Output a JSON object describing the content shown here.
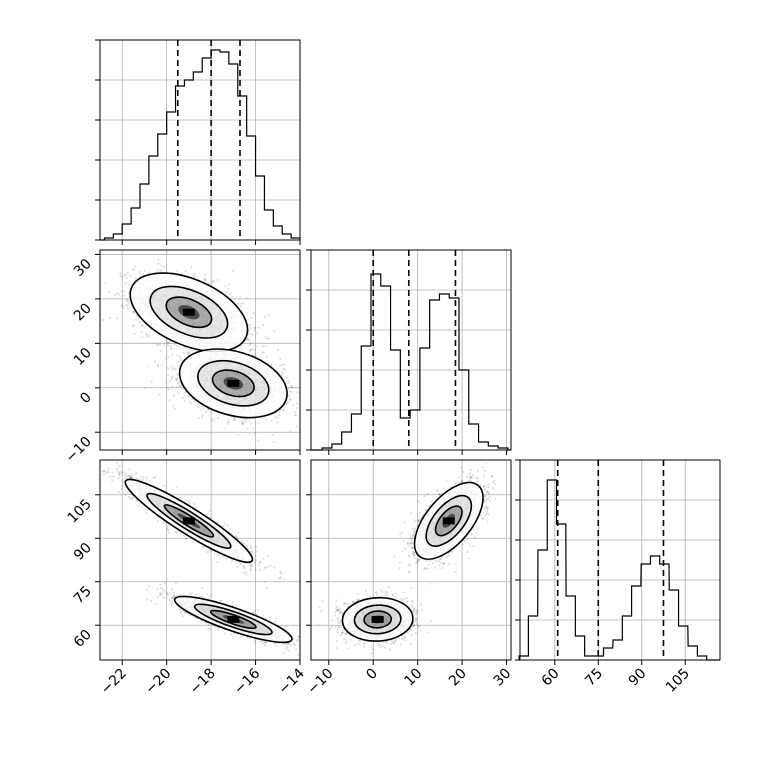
{
  "chart_data": [
    {
      "id": "hist-x",
      "type": "bar",
      "description_role": "marginal histogram of parameter 1",
      "x": [
        -22.6,
        -22.2,
        -21.8,
        -21.4,
        -21.0,
        -20.6,
        -20.2,
        -19.8,
        -19.4,
        -19.0,
        -18.6,
        -18.2,
        -17.8,
        -17.4,
        -17.0,
        -16.6,
        -16.2,
        -15.8,
        -15.4,
        -15.0,
        -14.6,
        -14.2
      ],
      "values": [
        1,
        3,
        8,
        16,
        28,
        42,
        53,
        64,
        77,
        80,
        84,
        91,
        95,
        94,
        88,
        72,
        52,
        32,
        15,
        7,
        3,
        1
      ],
      "quantiles": [
        -19.5,
        -18.0,
        -16.7
      ],
      "xlim": [
        -23.0,
        -14.0
      ],
      "ylim": [
        0,
        100
      ],
      "xticks": [
        -22,
        -20,
        -18,
        -16,
        -14
      ],
      "yticks": [
        0,
        20,
        40,
        60,
        80,
        100
      ],
      "grid": true
    },
    {
      "id": "hist-y",
      "type": "bar",
      "description_role": "marginal histogram of parameter 2",
      "x": [
        -10.4,
        -8.2,
        -6.0,
        -3.8,
        -1.6,
        0.6,
        2.8,
        5.0,
        7.2,
        9.4,
        11.6,
        13.8,
        16.0,
        18.2,
        20.4,
        22.6,
        24.8,
        27.0,
        29.2
      ],
      "values": [
        1,
        3,
        9,
        18,
        52,
        88,
        82,
        50,
        16,
        20,
        51,
        75,
        78,
        76,
        40,
        13,
        4,
        2,
        1
      ],
      "quantiles": [
        0.0,
        8.0,
        18.5
      ],
      "xlim": [
        -14.0,
        31.0
      ],
      "ylim": [
        0,
        100
      ],
      "xticks": [
        -10,
        0,
        10,
        20,
        30
      ],
      "yticks": [
        0,
        20,
        40,
        60,
        80,
        100
      ],
      "grid": true
    },
    {
      "id": "hist-z",
      "type": "bar",
      "description_role": "marginal histogram of parameter 3",
      "x": [
        49.3,
        52.5,
        55.8,
        59.0,
        62.2,
        65.5,
        68.7,
        71.9,
        75.2,
        78.4,
        81.7,
        84.9,
        88.1,
        91.4,
        94.6,
        97.8,
        101.1,
        104.3,
        107.6,
        110.8
      ],
      "values": [
        2,
        22,
        55,
        90,
        68,
        32,
        12,
        2,
        2,
        6,
        10,
        22,
        37,
        48,
        52,
        48,
        35,
        17,
        7,
        2
      ],
      "quantiles": [
        61.0,
        75.0,
        97.5
      ],
      "xlim": [
        48.0,
        117.0
      ],
      "ylim": [
        0,
        100
      ],
      "xticks": [
        60,
        75,
        90,
        105
      ],
      "yticks": [
        0,
        20,
        40,
        60,
        80,
        100
      ],
      "grid": true
    },
    {
      "id": "scatter-xy",
      "type": "scatter",
      "description_role": "joint density of parameter 1 vs parameter 2",
      "xlim": [
        -23.0,
        -14.0
      ],
      "ylim": [
        -14.0,
        31.0
      ],
      "xticks": [
        -22,
        -20,
        -18,
        -16,
        -14
      ],
      "yticks": [
        -10,
        0,
        10,
        20,
        30
      ],
      "clusters": [
        {
          "center": [
            -19.0,
            17.0
          ],
          "sd": [
            1.2,
            4.0
          ],
          "rho": -0.45,
          "n": 2200
        },
        {
          "center": [
            -17.0,
            1.0
          ],
          "sd": [
            1.1,
            3.5
          ],
          "rho": -0.3,
          "n": 2200
        }
      ],
      "grid": true
    },
    {
      "id": "scatter-xz",
      "type": "scatter",
      "description_role": "joint density of parameter 1 vs parameter 3",
      "xlim": [
        -23.0,
        -14.0
      ],
      "ylim": [
        48.0,
        117.0
      ],
      "xticks": [
        -22,
        -20,
        -18,
        -16,
        -14
      ],
      "yticks": [
        60,
        75,
        90,
        105
      ],
      "clusters": [
        {
          "center": [
            -19.0,
            96.0
          ],
          "sd": [
            1.3,
            6.5
          ],
          "rho": -0.93,
          "n": 2200
        },
        {
          "center": [
            -17.0,
            62.0
          ],
          "sd": [
            1.2,
            3.6
          ],
          "rho": -0.85,
          "n": 2200
        }
      ],
      "grid": true
    },
    {
      "id": "scatter-yz",
      "type": "scatter",
      "description_role": "joint density of parameter 2 vs parameter 3",
      "xlim": [
        -14.0,
        31.0
      ],
      "ylim": [
        48.0,
        117.0
      ],
      "xticks": [
        -10,
        0,
        10,
        20,
        30
      ],
      "yticks": [
        60,
        75,
        90,
        105
      ],
      "clusters": [
        {
          "center": [
            17.0,
            96.0
          ],
          "sd": [
            3.5,
            6.0
          ],
          "rho": 0.6,
          "n": 2200
        },
        {
          "center": [
            1.0,
            62.0
          ],
          "sd": [
            3.6,
            3.4
          ],
          "rho": 0.05,
          "n": 2200
        }
      ],
      "grid": true
    }
  ],
  "colors": {
    "background": "#ffffff",
    "axis": "#000000",
    "grid": "#b0b0b0",
    "points": "#000000",
    "contour": "#000000",
    "density": "#000000"
  }
}
